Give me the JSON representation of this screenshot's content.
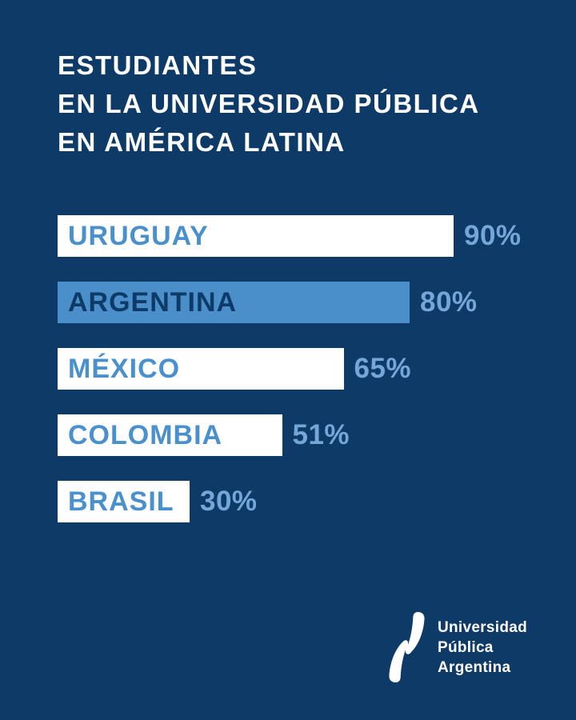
{
  "page": {
    "title_lines": [
      "ESTUDIANTES",
      "EN LA UNIVERSIDAD PÚBLICA",
      "EN AMÉRICA LATINA"
    ]
  },
  "chart_data": {
    "type": "bar",
    "orientation": "horizontal",
    "title": "ESTUDIANTES EN LA UNIVERSIDAD PÚBLICA EN AMÉRICA LATINA",
    "categories": [
      "URUGUAY",
      "ARGENTINA",
      "MÉXICO",
      "COLOMBIA",
      "BRASIL"
    ],
    "values": [
      90,
      80,
      65,
      51,
      30
    ],
    "value_labels": [
      "90%",
      "80%",
      "65%",
      "51%",
      "30%"
    ],
    "unit": "%",
    "xlim": [
      0,
      100
    ],
    "highlight_index": 1,
    "grid": false,
    "legend": false
  },
  "logo": {
    "name": "universidad-publica-argentina",
    "text_lines": [
      "Universidad",
      "Pública",
      "Argentina"
    ]
  },
  "colors": {
    "background": "#0E3A68",
    "title_text": "#FFFFFF",
    "bar_default": "#FFFFFF",
    "bar_highlight": "#4B8FCA",
    "category_label_on_white": "#4A90CC",
    "category_label_on_blue": "#0E3A68",
    "value_label": "#74A6D6",
    "logo_text": "#FFFFFF",
    "logo_mark": "#FFFFFF"
  }
}
